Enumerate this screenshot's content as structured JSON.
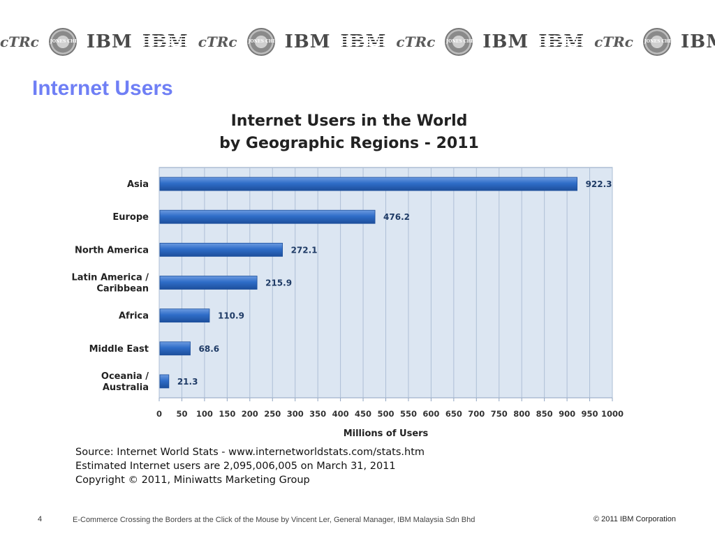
{
  "slide": {
    "title": "Internet Users",
    "logo_sequence": [
      "ctrc",
      "seal",
      "ibm",
      "ibm-striped"
    ],
    "logo_text": {
      "ibm": "IBM",
      "ctrc": "cTRc",
      "seal": "JONES CHIMES"
    }
  },
  "chart_data": {
    "type": "bar",
    "orientation": "horizontal",
    "title": "Internet Users in the World",
    "subtitle": "by Geographic Regions - 2011",
    "categories": [
      "Asia",
      "Europe",
      "North America",
      "Latin America / Caribbean",
      "Africa",
      "Middle East",
      "Oceania / Australia"
    ],
    "category_lines": [
      [
        "Asia"
      ],
      [
        "Europe"
      ],
      [
        "North America"
      ],
      [
        "Latin America /",
        "Caribbean"
      ],
      [
        "Africa"
      ],
      [
        "Middle East"
      ],
      [
        "Oceania /",
        "Australia"
      ]
    ],
    "values": [
      922.3,
      476.2,
      272.1,
      215.9,
      110.9,
      68.6,
      21.3
    ],
    "value_labels": [
      "922.3",
      "476.2",
      "272.1",
      "215.9",
      "110.9",
      "68.6",
      "21.3"
    ],
    "xlabel": "Millions of Users",
    "ylabel": "",
    "xlim": [
      0,
      1000
    ],
    "xticks": [
      0,
      50,
      100,
      150,
      200,
      250,
      300,
      350,
      400,
      450,
      500,
      550,
      600,
      650,
      700,
      750,
      800,
      850,
      900,
      950,
      1000
    ],
    "grid": true,
    "legend": "none",
    "colors": {
      "bar": "#2f6dc8",
      "bar_dark": "#1d4f9c",
      "plot_bg": "#dce6f2",
      "grid": "#aebfd6",
      "axis": "#8ea3c0"
    }
  },
  "notes": {
    "line1": "Source: Internet World Stats - www.internetworldstats.com/stats.htm",
    "line2": "Estimated Internet users are 2,095,006,005 on March 31, 2011",
    "line3": "Copyright © 2011, Miniwatts Marketing Group"
  },
  "footer": {
    "page_number": "4",
    "text": "E-Commerce Crossing the Borders at the Click of the Mouse by Vincent Ler, General Manager, IBM Malaysia Sdn Bhd",
    "copyright": "© 2011 IBM Corporation"
  }
}
